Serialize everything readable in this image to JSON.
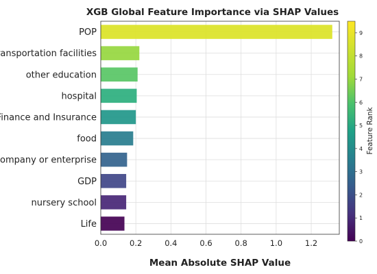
{
  "chart_data": {
    "type": "bar",
    "orientation": "horizontal",
    "title": "XGB Global Feature Importance via SHAP Values",
    "xlabel": "Mean Absolute SHAP Value",
    "ylabel": "",
    "xlim": [
      0,
      1.36
    ],
    "xticks": [
      "0.0",
      "0.2",
      "0.4",
      "0.6",
      "0.8",
      "1.0",
      "1.2"
    ],
    "grid": true,
    "categories": [
      "POP",
      "Transportation facilities",
      "other education",
      "hospital",
      "Finance and Insurance",
      "food",
      "Company or enterprise",
      "GDP",
      "nursery school",
      "Life"
    ],
    "values": [
      1.32,
      0.22,
      0.21,
      0.205,
      0.2,
      0.185,
      0.15,
      0.145,
      0.145,
      0.135
    ],
    "ranks": [
      9,
      8,
      7,
      6,
      5,
      4,
      3,
      2,
      1,
      0
    ],
    "colorbar": {
      "label": "Feature Rank",
      "range": [
        0,
        9.5
      ],
      "ticks": [
        "0",
        "1",
        "2",
        "3",
        "4",
        "5",
        "6",
        "7",
        "8",
        "9"
      ],
      "colormap": "viridis"
    }
  }
}
